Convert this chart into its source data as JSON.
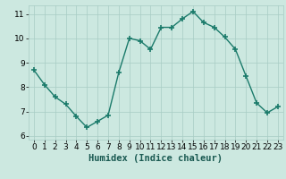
{
  "x": [
    0,
    1,
    2,
    3,
    4,
    5,
    6,
    7,
    8,
    9,
    10,
    11,
    12,
    13,
    14,
    15,
    16,
    17,
    18,
    19,
    20,
    21,
    22,
    23
  ],
  "y": [
    8.7,
    8.1,
    7.6,
    7.3,
    6.8,
    6.35,
    6.6,
    6.85,
    8.6,
    10.0,
    9.9,
    9.55,
    10.45,
    10.45,
    10.8,
    11.1,
    10.65,
    10.45,
    10.05,
    9.55,
    8.45,
    7.35,
    6.95,
    7.2
  ],
  "line_color": "#1a7a6a",
  "marker": "+",
  "marker_size": 4,
  "marker_lw": 1.2,
  "line_width": 1.0,
  "bg_color": "#cce8e0",
  "grid_color": "#a8ccc4",
  "xlabel": "Humidex (Indice chaleur)",
  "xlabel_fontsize": 7.5,
  "tick_fontsize": 6.5,
  "xlim": [
    -0.5,
    23.5
  ],
  "ylim": [
    5.85,
    11.35
  ],
  "yticks": [
    6,
    7,
    8,
    9,
    10,
    11
  ],
  "xticks": [
    0,
    1,
    2,
    3,
    4,
    5,
    6,
    7,
    8,
    9,
    10,
    11,
    12,
    13,
    14,
    15,
    16,
    17,
    18,
    19,
    20,
    21,
    22,
    23
  ]
}
